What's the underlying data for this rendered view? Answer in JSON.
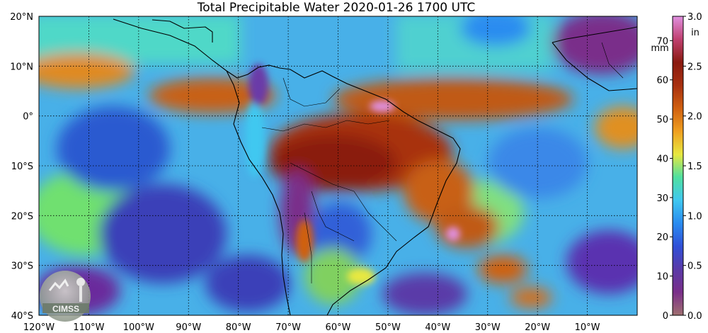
{
  "title": "Total Precipitable Water  2020-01-26 1700 UTC",
  "map": {
    "lon_range": [
      -120,
      0
    ],
    "lat_range": [
      -40,
      20
    ],
    "grid": "dotted",
    "lat_labels": [
      {
        "lat": 20,
        "label": "20°N"
      },
      {
        "lat": 10,
        "label": "10°N"
      },
      {
        "lat": 0,
        "label": "0°"
      },
      {
        "lat": -10,
        "label": "10°S"
      },
      {
        "lat": -20,
        "label": "20°S"
      },
      {
        "lat": -30,
        "label": "30°S"
      },
      {
        "lat": -40,
        "label": "40°S"
      }
    ],
    "lon_labels": [
      {
        "lon": -120,
        "label": "120°W"
      },
      {
        "lon": -110,
        "label": "110°W"
      },
      {
        "lon": -100,
        "label": "100°W"
      },
      {
        "lon": -90,
        "label": "90°W"
      },
      {
        "lon": -80,
        "label": "80°W"
      },
      {
        "lon": -70,
        "label": "70°W"
      },
      {
        "lon": -60,
        "label": "60°W"
      },
      {
        "lon": -50,
        "label": "50°W"
      },
      {
        "lon": -40,
        "label": "40°W"
      },
      {
        "lon": -30,
        "label": "30°W"
      },
      {
        "lon": -20,
        "label": "20°W"
      },
      {
        "lon": -10,
        "label": "10°W"
      }
    ]
  },
  "colorbar": {
    "mm_unit": "mm",
    "in_unit": "in",
    "mm_range": [
      0,
      76.2
    ],
    "mm_ticks": [
      0,
      10,
      20,
      30,
      40,
      50,
      60,
      70
    ],
    "in_ticks": [
      "0.0",
      "0.5",
      "1.0",
      "1.5",
      "2.0",
      "2.5",
      "3.0"
    ],
    "colors": [
      "#a07070",
      "#7a2f8a",
      "#5a3aa8",
      "#3050d8",
      "#2a8cf0",
      "#40c8f0",
      "#50e0a0",
      "#e8e840",
      "#f0a020",
      "#d06010",
      "#a83010",
      "#8a1a10",
      "#c04070",
      "#e090e0"
    ]
  },
  "logo": {
    "text": "CIMSS"
  }
}
